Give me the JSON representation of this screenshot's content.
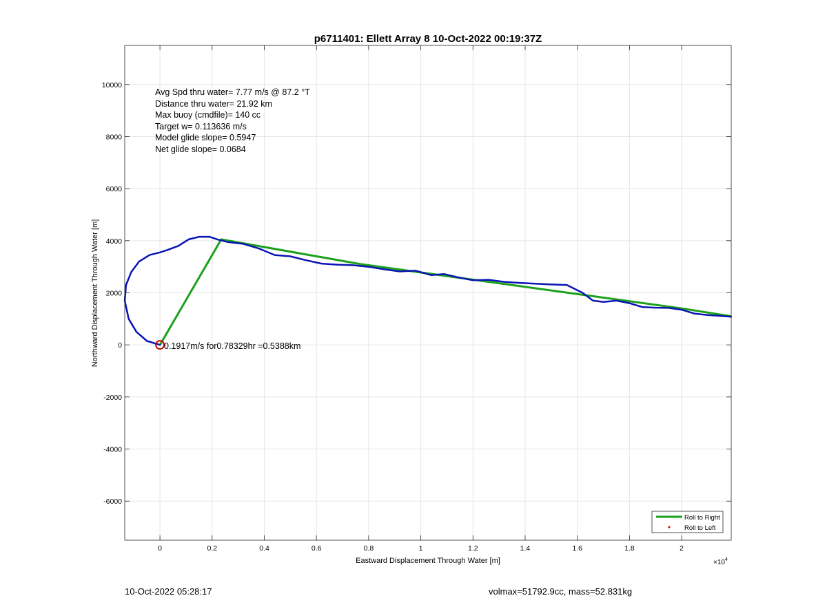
{
  "footer": {
    "timestamp": "10-Oct-2022 05:28:17",
    "vol_mass": "volmax=51792.9cc, mass=52.831kg"
  },
  "chart_data": {
    "type": "line",
    "title": "p6711401: Ellett Array 8 10-Oct-2022 00:19:37Z",
    "xlabel": "Eastward Displacement Through Water [m]",
    "ylabel": "Northward Displacement Through Water [m]",
    "x_exponent_label": "×10",
    "x_exponent_power": "4",
    "xlim": [
      -1350,
      21900
    ],
    "ylim": [
      -7500,
      11500
    ],
    "x_ticks": [
      0,
      2000,
      4000,
      6000,
      8000,
      10000,
      12000,
      14000,
      16000,
      18000,
      20000
    ],
    "x_tick_labels": [
      "0",
      "0.2",
      "0.4",
      "0.6",
      "0.8",
      "1",
      "1.2",
      "1.4",
      "1.6",
      "1.8",
      "2"
    ],
    "y_ticks": [
      -6000,
      -4000,
      -2000,
      0,
      2000,
      4000,
      6000,
      8000,
      10000
    ],
    "y_tick_labels": [
      "-6000",
      "-4000",
      "-2000",
      "0",
      "2000",
      "4000",
      "6000",
      "8000",
      "10000"
    ],
    "grid": true,
    "legend_position": "bottom-right",
    "annotations": [
      "Avg Spd thru water=  7.77 m/s @  87.2 °T",
      "Distance thru water= 21.92 km",
      "Max buoy (cmdfile)= 140 cc",
      "Target w= 0.113636 m/s",
      "Model glide slope= 0.5947",
      "Net glide slope= 0.0684"
    ],
    "origin_label": "0.1917m/s for0.78329hr =0.5388km",
    "start_marker": {
      "x": 0,
      "y": 0
    },
    "series": [
      {
        "name": "Roll to Right",
        "color": "#1aa01a",
        "x": [
          0,
          2350,
          7700,
          20000,
          21900
        ],
        "y": [
          0,
          4050,
          3100,
          1400,
          1100
        ]
      },
      {
        "name": "Roll to Left",
        "color": "#cc0000",
        "x": [],
        "y": []
      },
      {
        "name": "track",
        "color": "#0a14b4",
        "x": [
          0,
          -500,
          -900,
          -1200,
          -1350,
          -1300,
          -1100,
          -800,
          -400,
          0,
          300,
          700,
          1100,
          1500,
          1900,
          2200,
          2600,
          3200,
          3800,
          4400,
          5000,
          5600,
          6200,
          6800,
          7400,
          8000,
          8600,
          9200,
          9800,
          10400,
          10900,
          11400,
          12000,
          12600,
          13200,
          13800,
          14400,
          15000,
          15600,
          16200,
          16600,
          17000,
          17500,
          18000,
          18500,
          19000,
          19500,
          20000,
          20500,
          21000,
          21900
        ],
        "y": [
          0,
          150,
          500,
          1000,
          1700,
          2300,
          2800,
          3200,
          3450,
          3550,
          3650,
          3800,
          4050,
          4150,
          4150,
          4050,
          3950,
          3880,
          3700,
          3450,
          3400,
          3250,
          3120,
          3080,
          3060,
          3000,
          2900,
          2820,
          2850,
          2680,
          2720,
          2600,
          2480,
          2500,
          2420,
          2380,
          2350,
          2320,
          2300,
          2000,
          1700,
          1650,
          1700,
          1600,
          1450,
          1430,
          1420,
          1350,
          1200,
          1150,
          1080
        ]
      }
    ]
  }
}
